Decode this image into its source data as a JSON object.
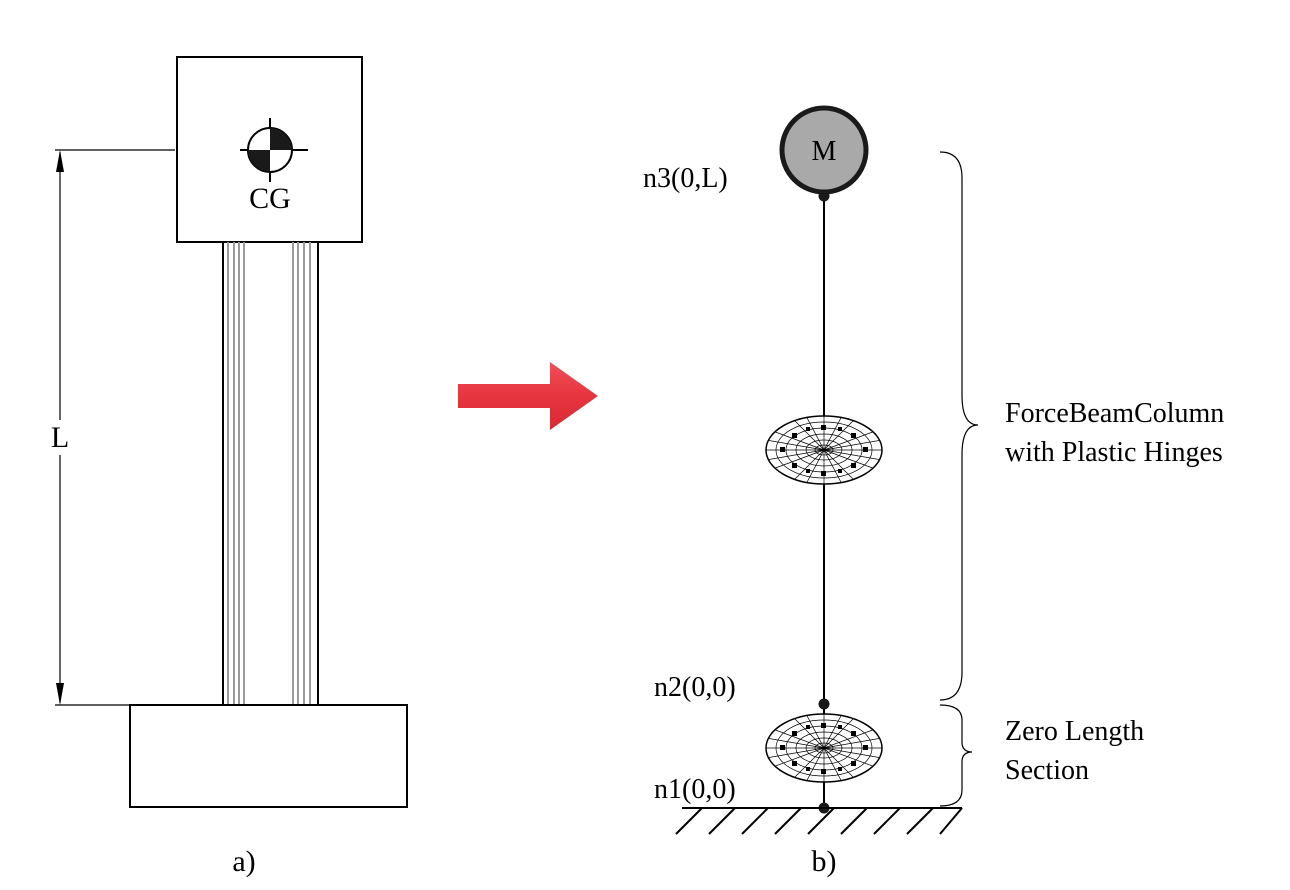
{
  "panel_a": {
    "cg_label": "CG",
    "length_label": "L",
    "caption": "a)"
  },
  "panel_b": {
    "mass_label": "M",
    "node_top": "n3(0,L)",
    "node_mid": "n2(0,0)",
    "node_bottom": "n1(0,0)",
    "element_label_line1": "ForceBeamColumn",
    "element_label_line2": "with Plastic Hinges",
    "zero_label_line1": "Zero Length",
    "zero_label_line2": "Section",
    "caption": "b)"
  },
  "colors": {
    "arrow": "#e8343f",
    "mass_fill": "#a9a9a9",
    "rebar_gray": "#9a9a9a"
  }
}
